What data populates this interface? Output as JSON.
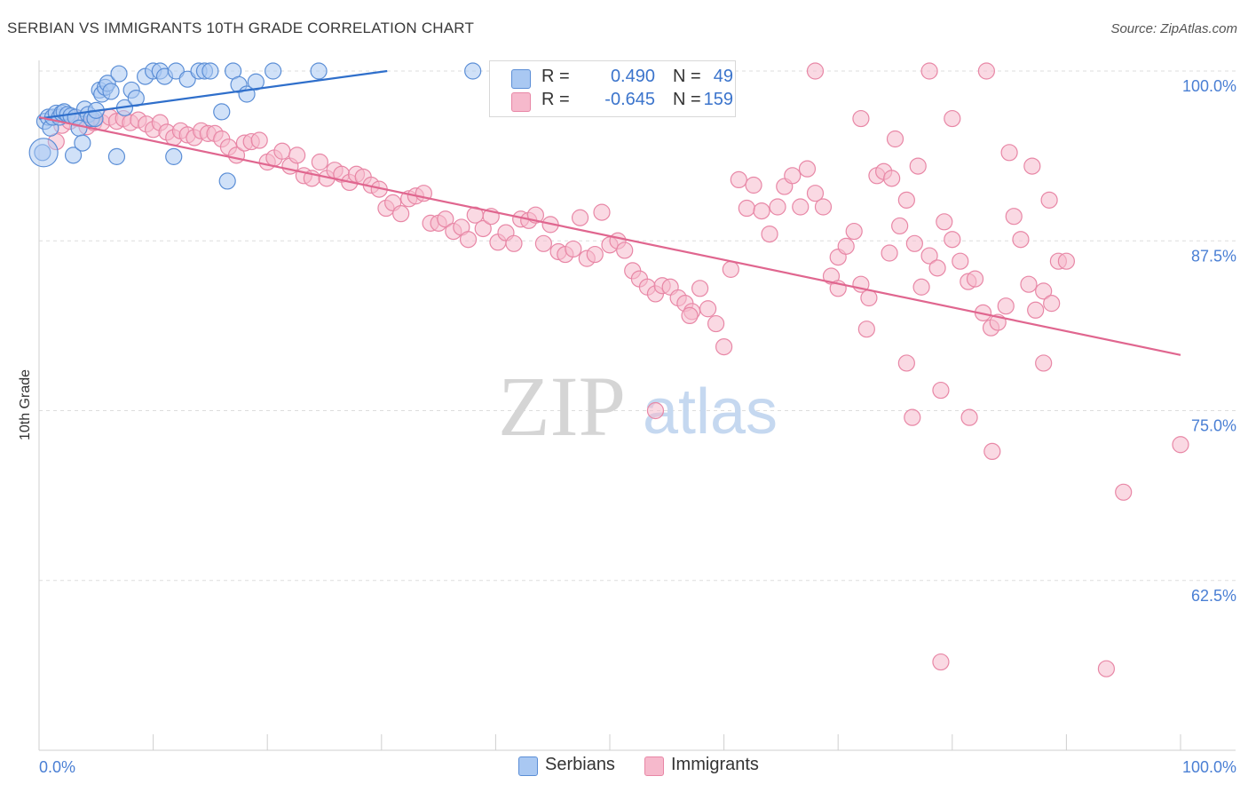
{
  "title": "SERBIAN VS IMMIGRANTS 10TH GRADE CORRELATION CHART",
  "source": "Source: ZipAtlas.com",
  "watermark": {
    "zip": "ZIP",
    "atlas": "atlas"
  },
  "colors": {
    "serbians_fill": "#a9c8f2",
    "serbians_stroke": "#5b8ed6",
    "serbians_line": "#2f6fcb",
    "immigrants_fill": "#f6b9cc",
    "immigrants_stroke": "#e887a6",
    "immigrants_line": "#e0668f",
    "tick_text": "#4a7fd4",
    "grid": "#dddddd"
  },
  "legend": {
    "rows": [
      {
        "r_label": "R =",
        "r_value": "0.490",
        "n_label": "N =",
        "n_value": "49",
        "series": "serbians"
      },
      {
        "r_label": "R =",
        "r_value": "-0.645",
        "n_label": "N =",
        "n_value": "159",
        "series": "immigrants"
      }
    ]
  },
  "bottom_legend": [
    {
      "label": "Serbians",
      "series": "serbians"
    },
    {
      "label": "Immigrants",
      "series": "immigrants"
    }
  ],
  "chart_data": {
    "type": "scatter",
    "title": "SERBIAN VS IMMIGRANTS 10TH GRADE CORRELATION CHART",
    "xlabel": "",
    "ylabel": "10th Grade",
    "xlim": [
      0,
      100
    ],
    "ylim": [
      50,
      100
    ],
    "x_tick_labels": [
      {
        "value": 0,
        "label": "0.0%"
      },
      {
        "value": 100,
        "label": "100.0%"
      }
    ],
    "y_tick_labels": [
      {
        "value": 100,
        "label": "100.0%"
      },
      {
        "value": 87.5,
        "label": "87.5%"
      },
      {
        "value": 75,
        "label": "75.0%"
      },
      {
        "value": 62.5,
        "label": "62.5%"
      }
    ],
    "grid": true,
    "legend_position": "top-center",
    "series": [
      {
        "name": "Serbians",
        "key": "serbians",
        "trend": {
          "x": [
            0,
            30.5
          ],
          "y": [
            96.5,
            100
          ]
        },
        "points": [
          [
            0.3,
            94.0
          ],
          [
            0.5,
            96.3
          ],
          [
            0.8,
            96.6
          ],
          [
            1.0,
            95.8
          ],
          [
            1.2,
            96.6
          ],
          [
            1.5,
            96.9
          ],
          [
            1.8,
            96.6
          ],
          [
            2.0,
            96.9
          ],
          [
            2.2,
            97.0
          ],
          [
            2.5,
            96.8
          ],
          [
            2.8,
            96.7
          ],
          [
            3.0,
            93.8
          ],
          [
            3.2,
            96.6
          ],
          [
            3.5,
            95.8
          ],
          [
            3.8,
            94.7
          ],
          [
            4.0,
            97.2
          ],
          [
            4.3,
            96.8
          ],
          [
            4.6,
            96.5
          ],
          [
            4.9,
            96.5
          ],
          [
            5.0,
            97.1
          ],
          [
            5.3,
            98.6
          ],
          [
            5.5,
            98.3
          ],
          [
            5.8,
            98.8
          ],
          [
            6.0,
            99.1
          ],
          [
            6.3,
            98.5
          ],
          [
            6.8,
            93.7
          ],
          [
            7.0,
            99.8
          ],
          [
            7.5,
            97.3
          ],
          [
            8.1,
            98.6
          ],
          [
            8.5,
            98.0
          ],
          [
            9.3,
            99.6
          ],
          [
            10.0,
            100.0
          ],
          [
            10.6,
            100.0
          ],
          [
            11.0,
            99.6
          ],
          [
            11.8,
            93.7
          ],
          [
            12.0,
            100.0
          ],
          [
            13.0,
            99.4
          ],
          [
            14.0,
            100.0
          ],
          [
            14.5,
            100.0
          ],
          [
            15.0,
            100.0
          ],
          [
            17.0,
            100.0
          ],
          [
            16.5,
            91.9
          ],
          [
            16.0,
            97.0
          ],
          [
            17.5,
            99.0
          ],
          [
            18.2,
            98.3
          ],
          [
            19.0,
            99.2
          ],
          [
            20.5,
            100.0
          ],
          [
            24.5,
            100.0
          ],
          [
            38.0,
            100.0
          ]
        ],
        "large_point": [
          0.4,
          94.0
        ]
      },
      {
        "name": "Immigrants",
        "key": "immigrants",
        "trend": {
          "x": [
            0,
            100
          ],
          "y": [
            96.6,
            79.1
          ]
        },
        "points": [
          [
            1.5,
            94.8
          ],
          [
            2.0,
            96.0
          ],
          [
            2.7,
            96.3
          ],
          [
            3.4,
            96.5
          ],
          [
            4.2,
            95.9
          ],
          [
            4.8,
            96.2
          ],
          [
            5.5,
            96.2
          ],
          [
            6.2,
            96.6
          ],
          [
            6.8,
            96.3
          ],
          [
            7.4,
            96.5
          ],
          [
            8.0,
            96.2
          ],
          [
            8.7,
            96.4
          ],
          [
            9.4,
            96.1
          ],
          [
            10.0,
            95.7
          ],
          [
            10.6,
            96.2
          ],
          [
            11.2,
            95.5
          ],
          [
            11.8,
            95.1
          ],
          [
            12.4,
            95.6
          ],
          [
            13.0,
            95.3
          ],
          [
            13.6,
            95.1
          ],
          [
            14.2,
            95.6
          ],
          [
            14.8,
            95.4
          ],
          [
            15.4,
            95.4
          ],
          [
            16.0,
            95.0
          ],
          [
            16.6,
            94.4
          ],
          [
            17.3,
            93.8
          ],
          [
            18.0,
            94.7
          ],
          [
            18.6,
            94.8
          ],
          [
            19.3,
            94.9
          ],
          [
            20.0,
            93.3
          ],
          [
            20.6,
            93.6
          ],
          [
            21.3,
            94.1
          ],
          [
            22.0,
            93.0
          ],
          [
            22.6,
            93.8
          ],
          [
            23.2,
            92.3
          ],
          [
            23.9,
            92.1
          ],
          [
            24.6,
            93.3
          ],
          [
            25.2,
            92.1
          ],
          [
            25.9,
            92.7
          ],
          [
            26.5,
            92.4
          ],
          [
            27.2,
            91.8
          ],
          [
            27.8,
            92.4
          ],
          [
            28.4,
            92.2
          ],
          [
            29.1,
            91.6
          ],
          [
            29.8,
            91.3
          ],
          [
            30.4,
            89.9
          ],
          [
            31.0,
            90.3
          ],
          [
            31.7,
            89.5
          ],
          [
            32.4,
            90.6
          ],
          [
            33.0,
            90.8
          ],
          [
            33.7,
            91.0
          ],
          [
            34.3,
            88.8
          ],
          [
            35.0,
            88.8
          ],
          [
            35.6,
            89.1
          ],
          [
            36.3,
            88.2
          ],
          [
            37.0,
            88.5
          ],
          [
            37.6,
            87.6
          ],
          [
            38.2,
            89.4
          ],
          [
            38.9,
            88.4
          ],
          [
            39.6,
            89.3
          ],
          [
            40.2,
            87.4
          ],
          [
            40.9,
            88.1
          ],
          [
            41.6,
            87.3
          ],
          [
            42.2,
            89.1
          ],
          [
            42.9,
            89.0
          ],
          [
            43.5,
            89.4
          ],
          [
            44.2,
            87.3
          ],
          [
            44.8,
            88.7
          ],
          [
            45.5,
            86.7
          ],
          [
            46.1,
            86.5
          ],
          [
            46.8,
            86.9
          ],
          [
            47.4,
            89.2
          ],
          [
            48.0,
            86.2
          ],
          [
            48.7,
            86.5
          ],
          [
            49.3,
            89.6
          ],
          [
            50.0,
            87.2
          ],
          [
            50.7,
            87.5
          ],
          [
            51.3,
            86.8
          ],
          [
            52.0,
            85.3
          ],
          [
            52.6,
            84.7
          ],
          [
            53.3,
            84.1
          ],
          [
            54.0,
            83.6
          ],
          [
            54.6,
            84.2
          ],
          [
            55.3,
            84.1
          ],
          [
            56.0,
            83.3
          ],
          [
            56.6,
            82.9
          ],
          [
            57.2,
            82.3
          ],
          [
            57.9,
            84.0
          ],
          [
            58.6,
            82.5
          ],
          [
            59.3,
            81.4
          ],
          [
            60.0,
            79.7
          ],
          [
            60.6,
            85.4
          ],
          [
            61.3,
            92.0
          ],
          [
            62.0,
            89.9
          ],
          [
            62.6,
            91.6
          ],
          [
            63.3,
            89.7
          ],
          [
            64.0,
            88.0
          ],
          [
            64.7,
            90.0
          ],
          [
            65.3,
            91.5
          ],
          [
            66.0,
            92.3
          ],
          [
            66.7,
            90.0
          ],
          [
            67.3,
            92.8
          ],
          [
            68.0,
            91.0
          ],
          [
            68.7,
            90.0
          ],
          [
            69.4,
            84.9
          ],
          [
            70.0,
            86.3
          ],
          [
            70.7,
            87.1
          ],
          [
            71.4,
            88.2
          ],
          [
            72.0,
            84.3
          ],
          [
            72.7,
            83.3
          ],
          [
            73.4,
            92.3
          ],
          [
            74.0,
            92.6
          ],
          [
            74.7,
            92.1
          ],
          [
            75.4,
            88.6
          ],
          [
            76.0,
            90.5
          ],
          [
            76.7,
            87.3
          ],
          [
            77.3,
            84.1
          ],
          [
            78.0,
            86.4
          ],
          [
            78.7,
            85.5
          ],
          [
            79.3,
            88.9
          ],
          [
            80.0,
            87.6
          ],
          [
            80.7,
            86.0
          ],
          [
            81.4,
            84.5
          ],
          [
            82.0,
            84.7
          ],
          [
            82.7,
            82.2
          ],
          [
            83.4,
            81.1
          ],
          [
            84.0,
            81.5
          ],
          [
            84.7,
            82.7
          ],
          [
            85.4,
            89.3
          ],
          [
            86.0,
            87.6
          ],
          [
            86.7,
            84.3
          ],
          [
            87.3,
            82.4
          ],
          [
            88.0,
            83.8
          ],
          [
            88.7,
            82.9
          ],
          [
            89.3,
            86.0
          ],
          [
            90.0,
            86.0
          ],
          [
            68.0,
            100.0
          ],
          [
            72.0,
            96.5
          ],
          [
            75.0,
            95.0
          ],
          [
            77.0,
            93.0
          ],
          [
            78.0,
            100.0
          ],
          [
            80.0,
            96.5
          ],
          [
            83.0,
            100.0
          ],
          [
            85.0,
            94.0
          ],
          [
            87.0,
            93.0
          ],
          [
            88.5,
            90.5
          ],
          [
            74.5,
            86.6
          ],
          [
            70.0,
            84.0
          ],
          [
            72.5,
            81.0
          ],
          [
            76.0,
            78.5
          ],
          [
            79.0,
            76.5
          ],
          [
            81.5,
            74.5
          ],
          [
            83.5,
            72.0
          ],
          [
            88.0,
            78.5
          ],
          [
            95.0,
            69.0
          ],
          [
            100.0,
            72.5
          ],
          [
            76.5,
            74.5
          ],
          [
            79.0,
            56.5
          ],
          [
            93.5,
            56.0
          ],
          [
            54.0,
            75.0
          ],
          [
            57.0,
            82.0
          ]
        ]
      }
    ]
  },
  "page": {
    "width": 1406,
    "height": 892
  }
}
